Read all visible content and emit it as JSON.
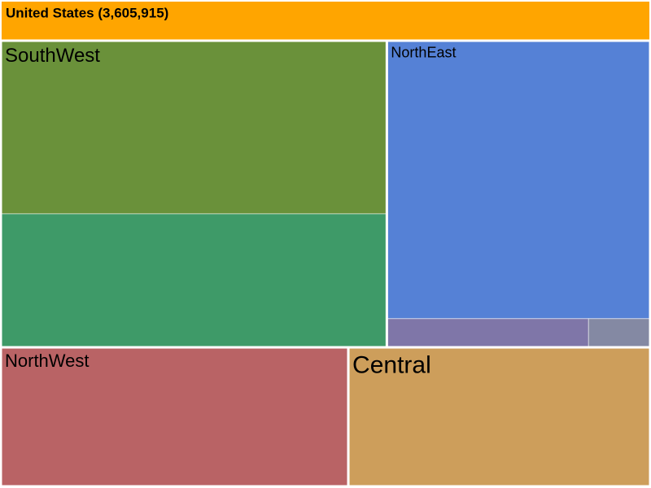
{
  "chart_data": {
    "type": "treemap",
    "title": "United States (3,605,915)",
    "header_color": "#ffa500",
    "regions": [
      {
        "name": "SouthWest",
        "children": [
          {
            "value": 833000,
            "color": "#6a913a"
          },
          {
            "value": 642000,
            "color": "#3e9a68"
          }
        ]
      },
      {
        "name": "NorthEast",
        "children": [
          {
            "value": 912000,
            "color": "#5581d6"
          },
          {
            "value": 72000,
            "color": "#7f76a8"
          },
          {
            "value": 22000,
            "color": "#8489a3"
          }
        ]
      },
      {
        "name": "NorthWest",
        "value": 602000,
        "color": "#b96365"
      },
      {
        "name": "Central",
        "value": 522915,
        "color": "#cd9e5b"
      }
    ]
  }
}
